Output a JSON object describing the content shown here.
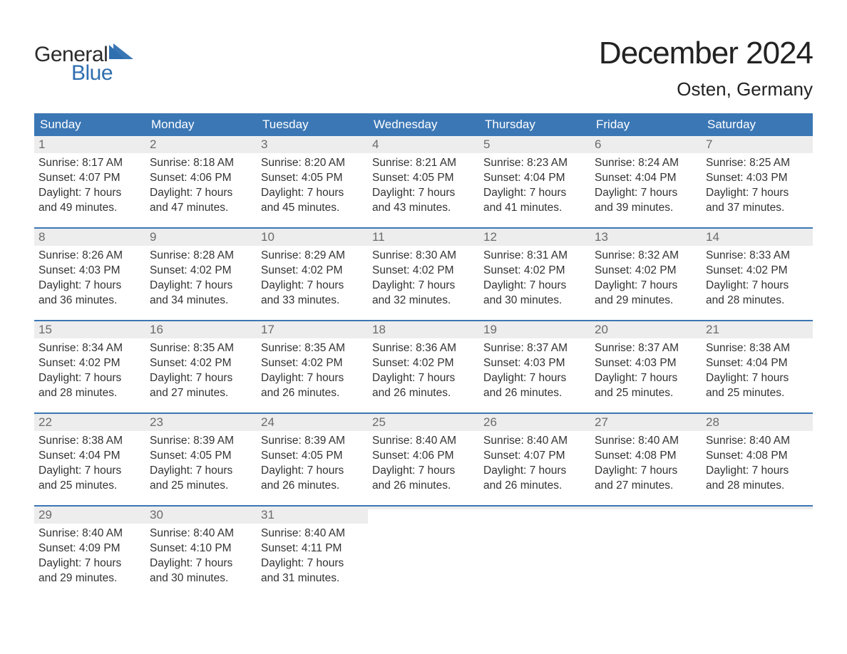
{
  "brand": {
    "word1": "General",
    "word2": "Blue",
    "sail_color": "#2f6fb0",
    "text_dark": "#2b2b2b"
  },
  "title": "December 2024",
  "location": "Osten, Germany",
  "colors": {
    "header_bg": "#3b77b5",
    "header_text": "#ffffff",
    "daynum_bg": "#ededed",
    "daynum_text": "#6b6b6b",
    "body_text": "#333333",
    "week_divider": "#3b77b5",
    "page_bg": "#ffffff"
  },
  "fonts": {
    "title_size_pt": 33,
    "location_size_pt": 20,
    "dayheader_size_pt": 13,
    "body_size_pt": 12
  },
  "day_names": [
    "Sunday",
    "Monday",
    "Tuesday",
    "Wednesday",
    "Thursday",
    "Friday",
    "Saturday"
  ],
  "weeks": [
    [
      {
        "n": "1",
        "sr": "Sunrise: 8:17 AM",
        "ss": "Sunset: 4:07 PM",
        "d1": "Daylight: 7 hours",
        "d2": "and 49 minutes."
      },
      {
        "n": "2",
        "sr": "Sunrise: 8:18 AM",
        "ss": "Sunset: 4:06 PM",
        "d1": "Daylight: 7 hours",
        "d2": "and 47 minutes."
      },
      {
        "n": "3",
        "sr": "Sunrise: 8:20 AM",
        "ss": "Sunset: 4:05 PM",
        "d1": "Daylight: 7 hours",
        "d2": "and 45 minutes."
      },
      {
        "n": "4",
        "sr": "Sunrise: 8:21 AM",
        "ss": "Sunset: 4:05 PM",
        "d1": "Daylight: 7 hours",
        "d2": "and 43 minutes."
      },
      {
        "n": "5",
        "sr": "Sunrise: 8:23 AM",
        "ss": "Sunset: 4:04 PM",
        "d1": "Daylight: 7 hours",
        "d2": "and 41 minutes."
      },
      {
        "n": "6",
        "sr": "Sunrise: 8:24 AM",
        "ss": "Sunset: 4:04 PM",
        "d1": "Daylight: 7 hours",
        "d2": "and 39 minutes."
      },
      {
        "n": "7",
        "sr": "Sunrise: 8:25 AM",
        "ss": "Sunset: 4:03 PM",
        "d1": "Daylight: 7 hours",
        "d2": "and 37 minutes."
      }
    ],
    [
      {
        "n": "8",
        "sr": "Sunrise: 8:26 AM",
        "ss": "Sunset: 4:03 PM",
        "d1": "Daylight: 7 hours",
        "d2": "and 36 minutes."
      },
      {
        "n": "9",
        "sr": "Sunrise: 8:28 AM",
        "ss": "Sunset: 4:02 PM",
        "d1": "Daylight: 7 hours",
        "d2": "and 34 minutes."
      },
      {
        "n": "10",
        "sr": "Sunrise: 8:29 AM",
        "ss": "Sunset: 4:02 PM",
        "d1": "Daylight: 7 hours",
        "d2": "and 33 minutes."
      },
      {
        "n": "11",
        "sr": "Sunrise: 8:30 AM",
        "ss": "Sunset: 4:02 PM",
        "d1": "Daylight: 7 hours",
        "d2": "and 32 minutes."
      },
      {
        "n": "12",
        "sr": "Sunrise: 8:31 AM",
        "ss": "Sunset: 4:02 PM",
        "d1": "Daylight: 7 hours",
        "d2": "and 30 minutes."
      },
      {
        "n": "13",
        "sr": "Sunrise: 8:32 AM",
        "ss": "Sunset: 4:02 PM",
        "d1": "Daylight: 7 hours",
        "d2": "and 29 minutes."
      },
      {
        "n": "14",
        "sr": "Sunrise: 8:33 AM",
        "ss": "Sunset: 4:02 PM",
        "d1": "Daylight: 7 hours",
        "d2": "and 28 minutes."
      }
    ],
    [
      {
        "n": "15",
        "sr": "Sunrise: 8:34 AM",
        "ss": "Sunset: 4:02 PM",
        "d1": "Daylight: 7 hours",
        "d2": "and 28 minutes."
      },
      {
        "n": "16",
        "sr": "Sunrise: 8:35 AM",
        "ss": "Sunset: 4:02 PM",
        "d1": "Daylight: 7 hours",
        "d2": "and 27 minutes."
      },
      {
        "n": "17",
        "sr": "Sunrise: 8:35 AM",
        "ss": "Sunset: 4:02 PM",
        "d1": "Daylight: 7 hours",
        "d2": "and 26 minutes."
      },
      {
        "n": "18",
        "sr": "Sunrise: 8:36 AM",
        "ss": "Sunset: 4:02 PM",
        "d1": "Daylight: 7 hours",
        "d2": "and 26 minutes."
      },
      {
        "n": "19",
        "sr": "Sunrise: 8:37 AM",
        "ss": "Sunset: 4:03 PM",
        "d1": "Daylight: 7 hours",
        "d2": "and 26 minutes."
      },
      {
        "n": "20",
        "sr": "Sunrise: 8:37 AM",
        "ss": "Sunset: 4:03 PM",
        "d1": "Daylight: 7 hours",
        "d2": "and 25 minutes."
      },
      {
        "n": "21",
        "sr": "Sunrise: 8:38 AM",
        "ss": "Sunset: 4:04 PM",
        "d1": "Daylight: 7 hours",
        "d2": "and 25 minutes."
      }
    ],
    [
      {
        "n": "22",
        "sr": "Sunrise: 8:38 AM",
        "ss": "Sunset: 4:04 PM",
        "d1": "Daylight: 7 hours",
        "d2": "and 25 minutes."
      },
      {
        "n": "23",
        "sr": "Sunrise: 8:39 AM",
        "ss": "Sunset: 4:05 PM",
        "d1": "Daylight: 7 hours",
        "d2": "and 25 minutes."
      },
      {
        "n": "24",
        "sr": "Sunrise: 8:39 AM",
        "ss": "Sunset: 4:05 PM",
        "d1": "Daylight: 7 hours",
        "d2": "and 26 minutes."
      },
      {
        "n": "25",
        "sr": "Sunrise: 8:40 AM",
        "ss": "Sunset: 4:06 PM",
        "d1": "Daylight: 7 hours",
        "d2": "and 26 minutes."
      },
      {
        "n": "26",
        "sr": "Sunrise: 8:40 AM",
        "ss": "Sunset: 4:07 PM",
        "d1": "Daylight: 7 hours",
        "d2": "and 26 minutes."
      },
      {
        "n": "27",
        "sr": "Sunrise: 8:40 AM",
        "ss": "Sunset: 4:08 PM",
        "d1": "Daylight: 7 hours",
        "d2": "and 27 minutes."
      },
      {
        "n": "28",
        "sr": "Sunrise: 8:40 AM",
        "ss": "Sunset: 4:08 PM",
        "d1": "Daylight: 7 hours",
        "d2": "and 28 minutes."
      }
    ],
    [
      {
        "n": "29",
        "sr": "Sunrise: 8:40 AM",
        "ss": "Sunset: 4:09 PM",
        "d1": "Daylight: 7 hours",
        "d2": "and 29 minutes."
      },
      {
        "n": "30",
        "sr": "Sunrise: 8:40 AM",
        "ss": "Sunset: 4:10 PM",
        "d1": "Daylight: 7 hours",
        "d2": "and 30 minutes."
      },
      {
        "n": "31",
        "sr": "Sunrise: 8:40 AM",
        "ss": "Sunset: 4:11 PM",
        "d1": "Daylight: 7 hours",
        "d2": "and 31 minutes."
      },
      {
        "empty": true
      },
      {
        "empty": true
      },
      {
        "empty": true
      },
      {
        "empty": true
      }
    ]
  ]
}
